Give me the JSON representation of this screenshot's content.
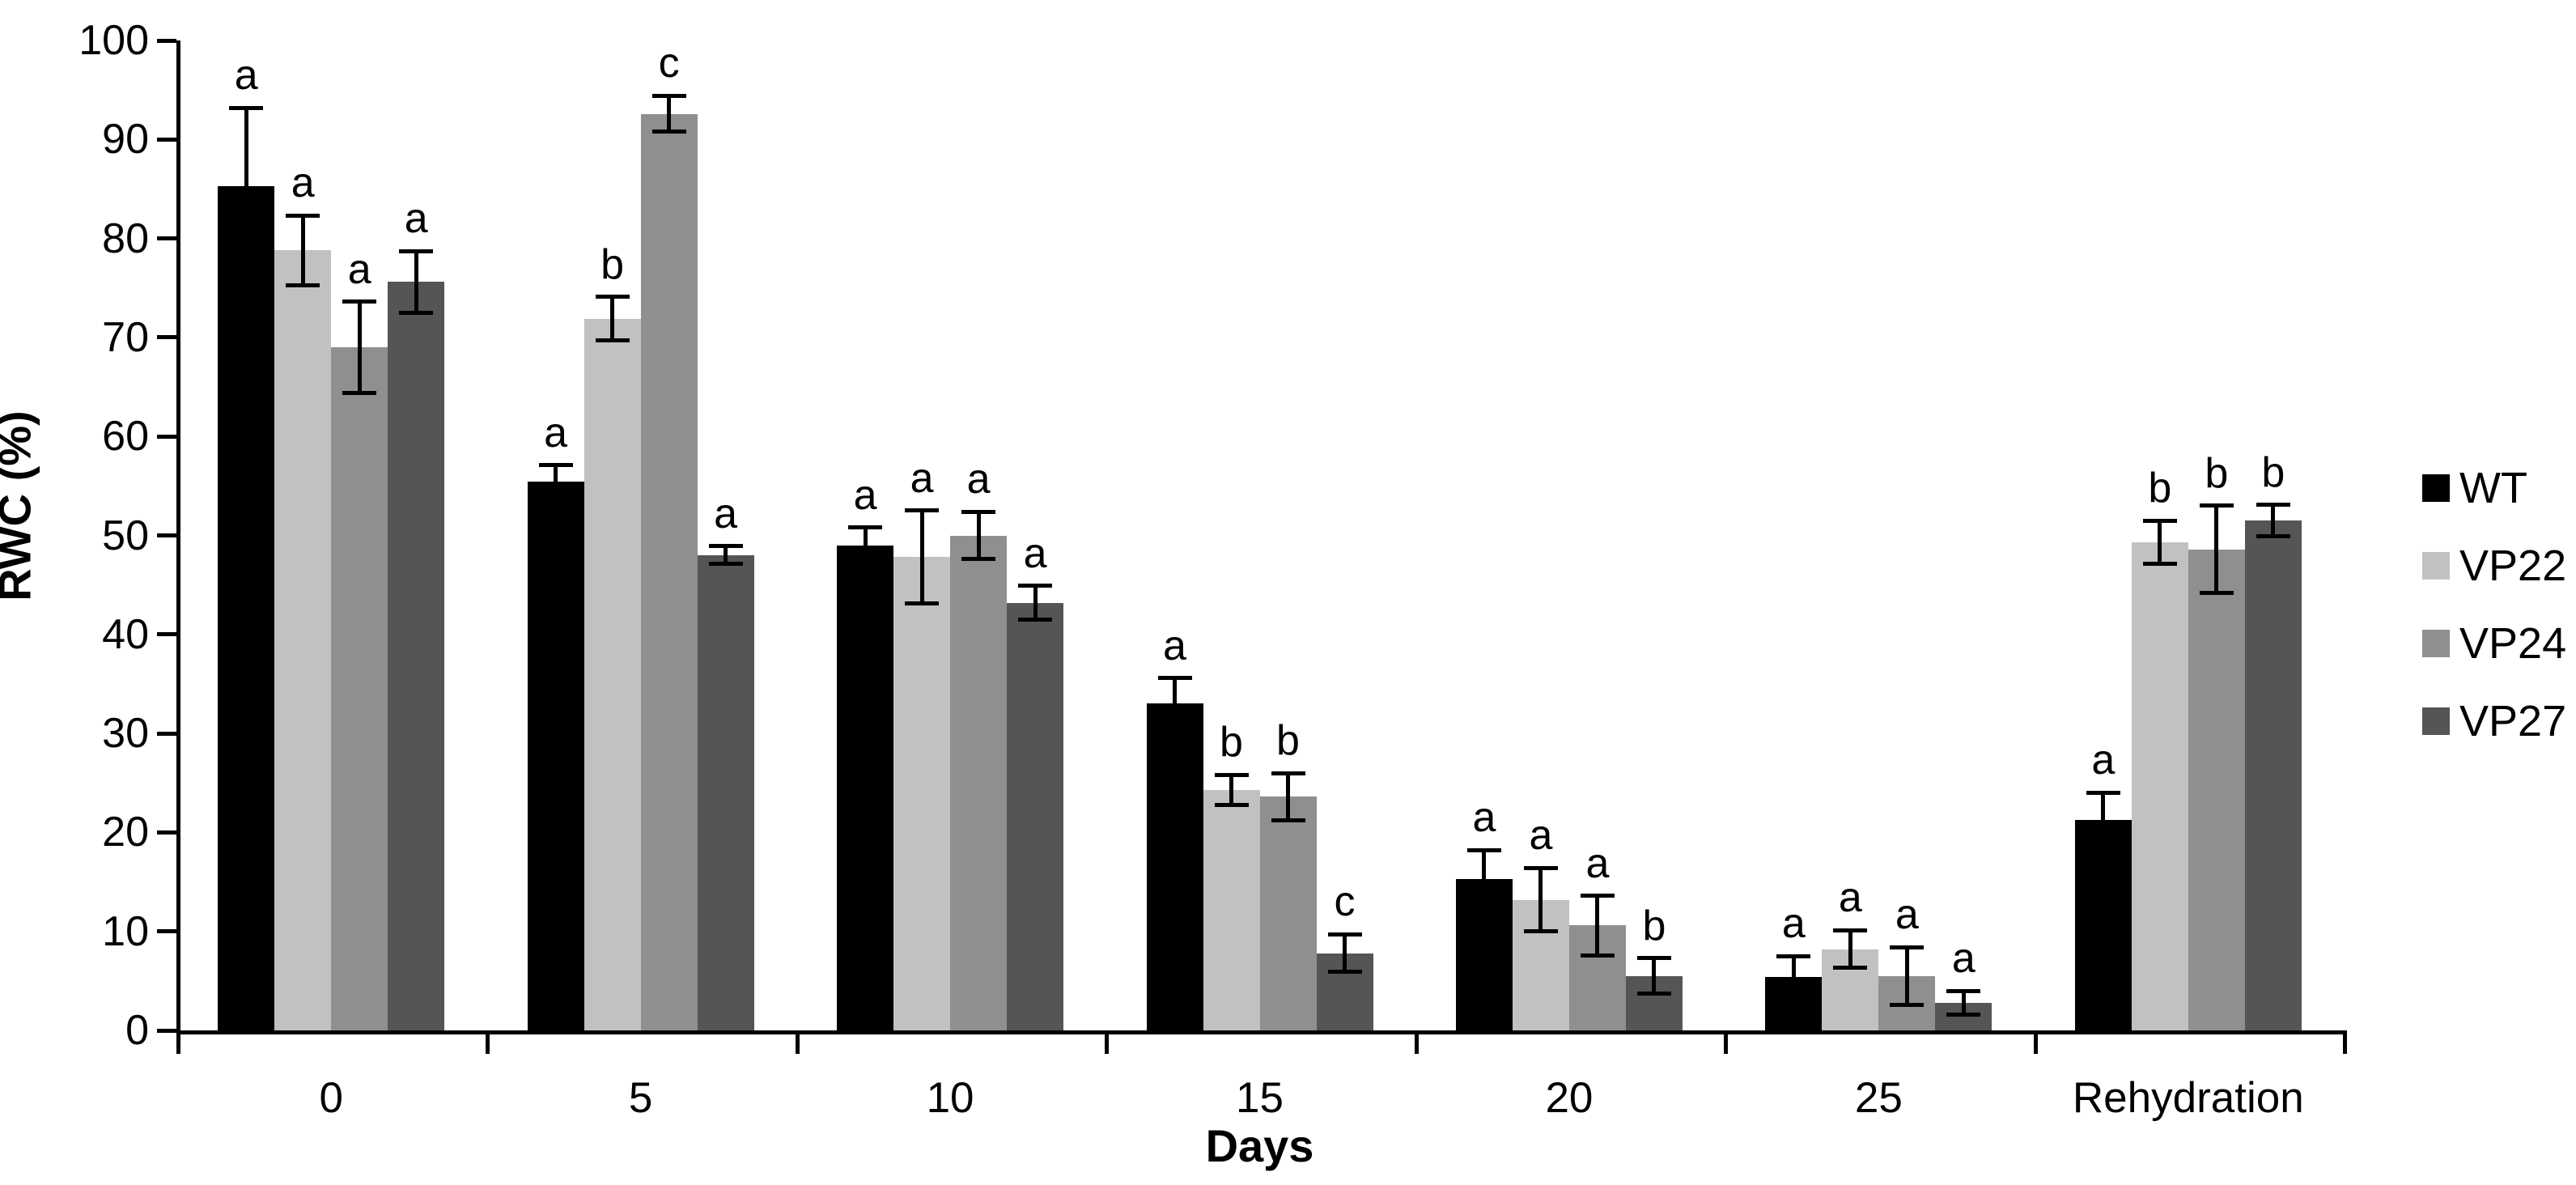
{
  "chart_data": {
    "type": "bar",
    "title": "",
    "xlabel": "Days",
    "ylabel": "RWC (%)",
    "ylim": [
      0,
      100
    ],
    "ytick_step": 10,
    "grid": false,
    "legend_position": "right",
    "axis_color": "#000000",
    "categories": [
      "0",
      "5",
      "10",
      "15",
      "20",
      "25",
      "Rehydration"
    ],
    "series": [
      {
        "name": "WT",
        "color": "#000000",
        "values": [
          85.3,
          55.4,
          49.0,
          33.0,
          15.3,
          5.4,
          21.3
        ],
        "errors": [
          7.9,
          1.7,
          1.8,
          2.6,
          2.9,
          2.1,
          2.7
        ],
        "letters": [
          "a",
          "a",
          "a",
          "a",
          "a",
          "a",
          "a"
        ]
      },
      {
        "name": "VP22",
        "color": "#c1c1c1",
        "values": [
          78.8,
          71.9,
          47.8,
          24.3,
          13.2,
          8.2,
          49.3
        ],
        "errors": [
          3.5,
          2.2,
          4.7,
          1.5,
          3.2,
          1.9,
          2.2
        ],
        "letters": [
          "a",
          "b",
          "a",
          "b",
          "a",
          "a",
          "b"
        ]
      },
      {
        "name": "VP24",
        "color": "#8f8f8f",
        "values": [
          69.0,
          92.6,
          50.0,
          23.6,
          10.6,
          5.5,
          48.6
        ],
        "errors": [
          4.6,
          1.8,
          2.4,
          2.4,
          3.0,
          2.9,
          4.4
        ],
        "letters": [
          "a",
          "c",
          "a",
          "b",
          "a",
          "a",
          "b"
        ]
      },
      {
        "name": "VP27",
        "color": "#555555",
        "values": [
          75.6,
          48.0,
          43.2,
          7.8,
          5.5,
          2.8,
          51.5
        ],
        "errors": [
          3.1,
          0.9,
          1.7,
          1.9,
          1.8,
          1.2,
          1.6
        ],
        "letters": [
          "a",
          "a",
          "a",
          "c",
          "b",
          "a",
          "b"
        ]
      }
    ]
  }
}
